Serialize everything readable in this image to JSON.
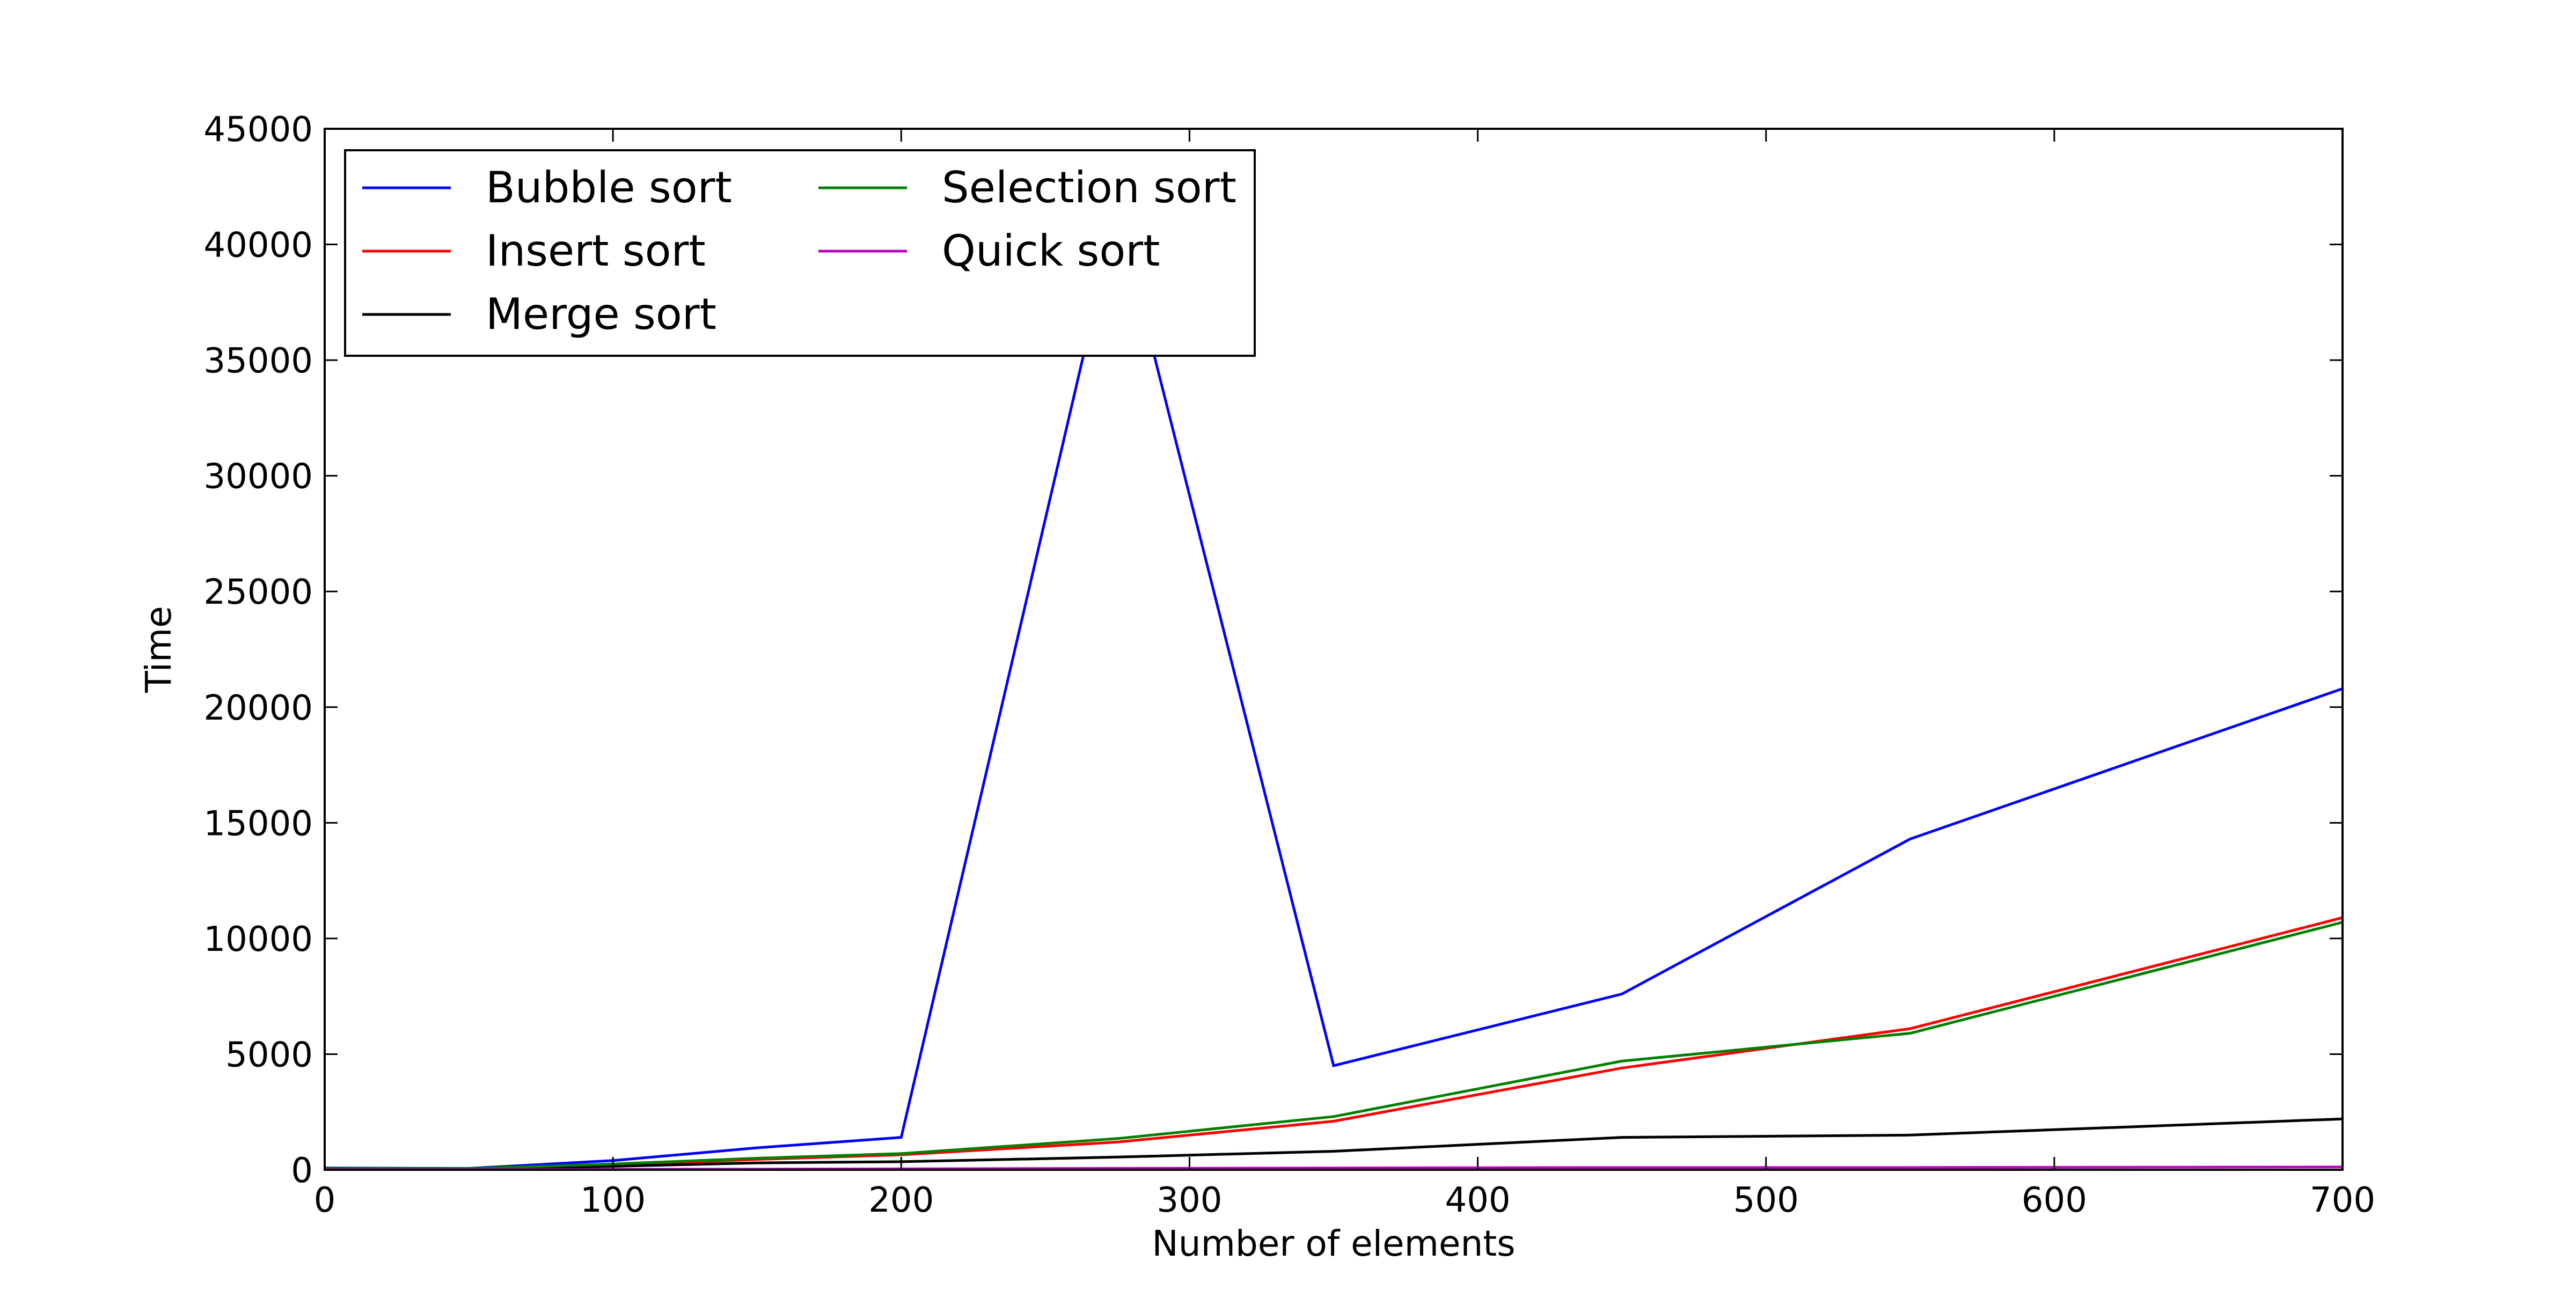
{
  "chart_data": {
    "type": "line",
    "title": "",
    "xlabel": "Number of elements",
    "ylabel": "Time",
    "xlim": [
      0,
      700
    ],
    "ylim": [
      0,
      45000
    ],
    "xticks": [
      0,
      100,
      200,
      300,
      400,
      500,
      600,
      700
    ],
    "yticks": [
      0,
      5000,
      10000,
      15000,
      20000,
      25000,
      30000,
      35000,
      40000,
      45000
    ],
    "grid": false,
    "legend": {
      "placement": "upper-left",
      "columns": 2
    },
    "x": [
      0,
      50,
      100,
      150,
      200,
      275,
      350,
      450,
      550,
      700
    ],
    "series": [
      {
        "name": "Bubble sort",
        "color": "#0000ff",
        "values": [
          80,
          60,
          400,
          950,
          1400,
          41500,
          4500,
          7600,
          14300,
          20800
        ]
      },
      {
        "name": "Insert sort",
        "color": "#ff0000",
        "values": [
          40,
          40,
          200,
          450,
          650,
          1200,
          2100,
          4400,
          6100,
          10900
        ]
      },
      {
        "name": "Merge sort",
        "color": "#000000",
        "values": [
          20,
          30,
          150,
          300,
          350,
          550,
          800,
          1400,
          1500,
          2200
        ]
      },
      {
        "name": "Selection sort",
        "color": "#008000",
        "values": [
          50,
          50,
          250,
          500,
          700,
          1350,
          2300,
          4700,
          5900,
          10700
        ]
      },
      {
        "name": "Quick sort",
        "color": "#bf00bf",
        "values": [
          10,
          10,
          20,
          30,
          40,
          60,
          80,
          100,
          100,
          120
        ]
      }
    ]
  }
}
